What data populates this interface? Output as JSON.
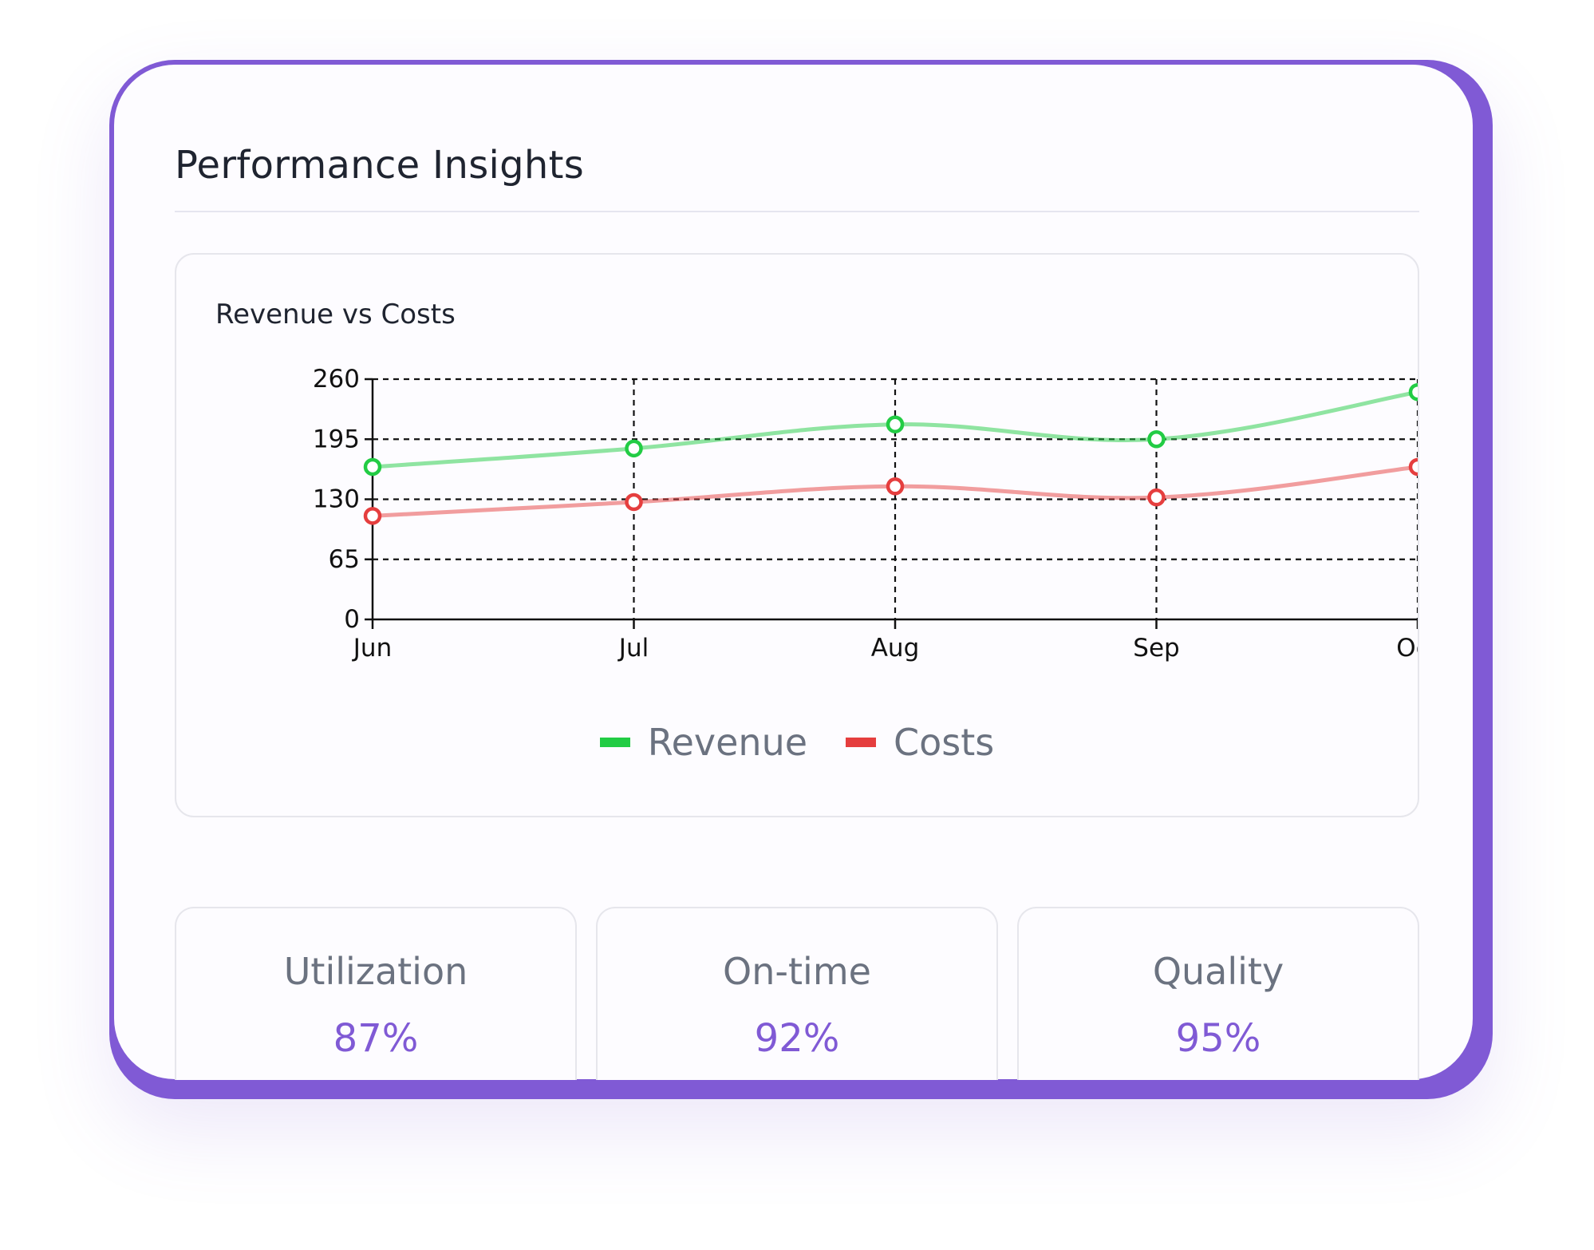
{
  "card": {
    "title": "Performance Insights"
  },
  "chart_data": {
    "type": "line",
    "title": "Revenue vs Costs",
    "categories": [
      "Jun",
      "Jul",
      "Aug",
      "Sep",
      "Oct"
    ],
    "series": [
      {
        "name": "Revenue",
        "color": "#22cc44",
        "values": [
          165,
          185,
          211,
          195,
          246
        ]
      },
      {
        "name": "Costs",
        "color": "#e53e3e",
        "values": [
          112,
          127,
          144,
          132,
          165
        ]
      }
    ],
    "yticks": [
      0,
      65,
      130,
      195,
      260
    ],
    "ylim": [
      0,
      260
    ],
    "grid": true,
    "legend": "bottom-center"
  },
  "stats": [
    {
      "label": "Utilization",
      "value": "87%"
    },
    {
      "label": "On-time",
      "value": "92%"
    },
    {
      "label": "Quality",
      "value": "95%"
    }
  ],
  "colors": {
    "accent": "#805ad5"
  }
}
